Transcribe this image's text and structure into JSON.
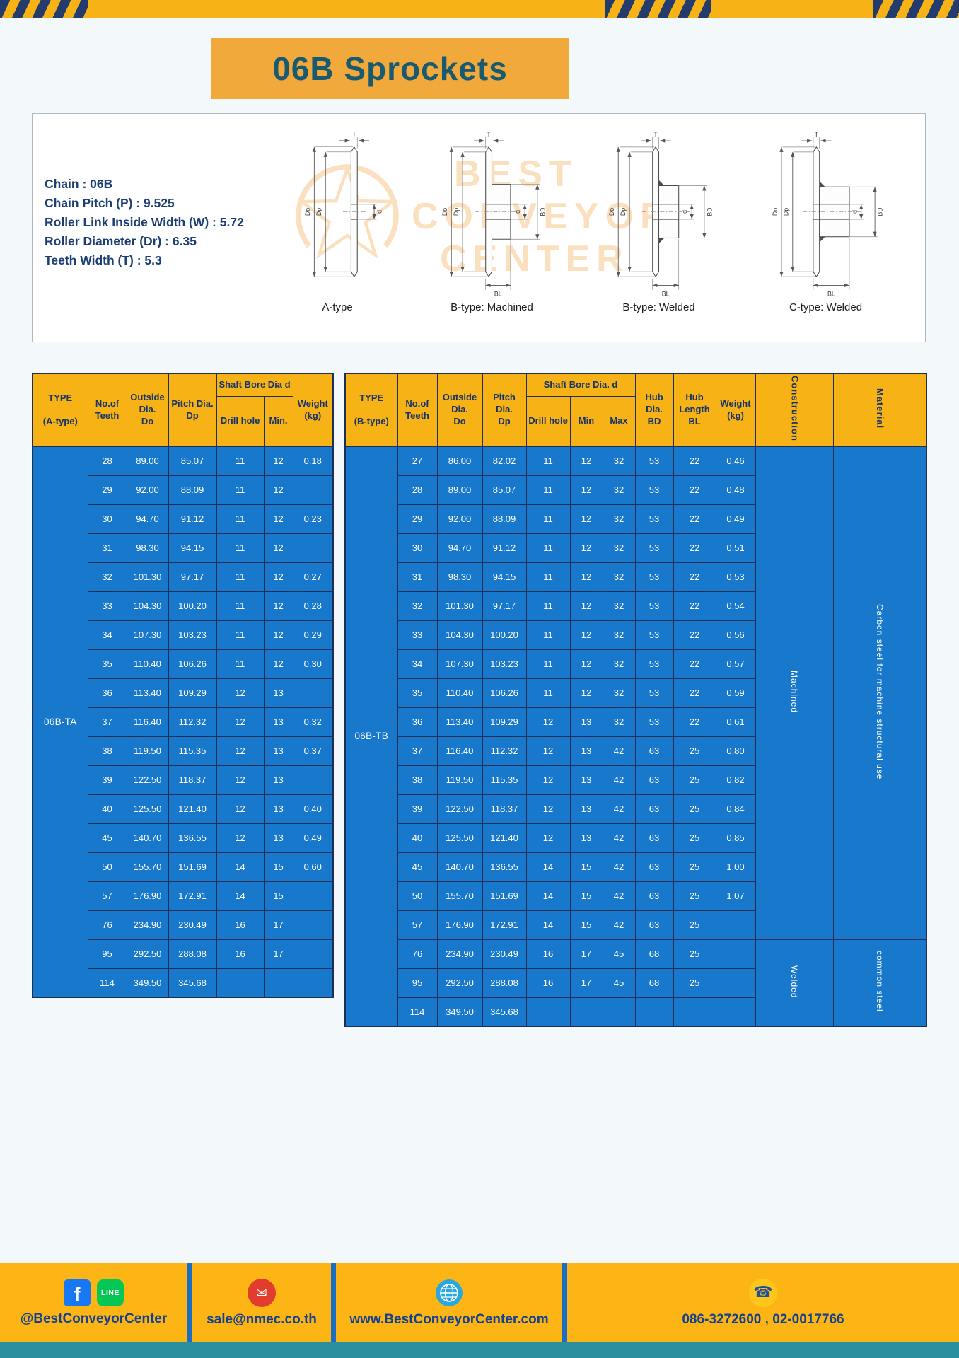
{
  "page_title": "06B Sprockets",
  "colors": {
    "header_yellow": "#f7b215",
    "cell_blue": "#1878cb",
    "border_navy": "#1d2f55",
    "banner_orange": "#f2a93b",
    "banner_text_teal": "#1a5a70",
    "spec_text_navy": "#1c3e75",
    "footer_yellow": "#fdb515",
    "footer_text_blue": "#14418f",
    "separator_blue": "#1a6fc4",
    "bottom_strip_teal": "#2b8fa0",
    "watermark_orange": "#ef9b2a"
  },
  "specs": {
    "lines": [
      "Chain : 06B",
      "Chain Pitch (P) : 9.525",
      "Roller Link Inside Width (W) : 5.72",
      "Roller Diameter (Dr) : 6.35",
      "Teeth Width (T) : 5.3"
    ]
  },
  "watermark": {
    "line1": "BEST",
    "line2": "CONVEYOR",
    "line3": "CENTER"
  },
  "diagrams": {
    "captions": [
      "A-type",
      "B-type: Machined",
      "B-type: Welded",
      "C-type: Welded"
    ],
    "dim_labels": {
      "t": "T",
      "do": "Do",
      "dp": "Dp",
      "d": "d",
      "bd": "BD",
      "bl": "BL"
    }
  },
  "table_a": {
    "header": {
      "type1": "TYPE",
      "type2": "(A-type)",
      "teeth": "No.of\nTeeth",
      "outside": "Outside\nDia.\nDo",
      "pitch": "Pitch Dia.\nDp",
      "bore_group": "Shaft Bore Dia d",
      "drill": "Drill hole",
      "min": "Min.",
      "weight": "Weight\n(kg)"
    },
    "type_label": "06B-TA",
    "rows": [
      [
        "28",
        "89.00",
        "85.07",
        "11",
        "12",
        "0.18"
      ],
      [
        "29",
        "92.00",
        "88.09",
        "11",
        "12",
        ""
      ],
      [
        "30",
        "94.70",
        "91.12",
        "11",
        "12",
        "0.23"
      ],
      [
        "31",
        "98.30",
        "94.15",
        "11",
        "12",
        ""
      ],
      [
        "32",
        "101.30",
        "97.17",
        "11",
        "12",
        "0.27"
      ],
      [
        "33",
        "104.30",
        "100.20",
        "11",
        "12",
        "0.28"
      ],
      [
        "34",
        "107.30",
        "103.23",
        "11",
        "12",
        "0.29"
      ],
      [
        "35",
        "110.40",
        "106.26",
        "11",
        "12",
        "0.30"
      ],
      [
        "36",
        "113.40",
        "109.29",
        "12",
        "13",
        ""
      ],
      [
        "37",
        "116.40",
        "112.32",
        "12",
        "13",
        "0.32"
      ],
      [
        "38",
        "119.50",
        "115.35",
        "12",
        "13",
        "0.37"
      ],
      [
        "39",
        "122.50",
        "118.37",
        "12",
        "13",
        ""
      ],
      [
        "40",
        "125.50",
        "121.40",
        "12",
        "13",
        "0.40"
      ],
      [
        "45",
        "140.70",
        "136.55",
        "12",
        "13",
        "0.49"
      ],
      [
        "50",
        "155.70",
        "151.69",
        "14",
        "15",
        "0.60"
      ],
      [
        "57",
        "176.90",
        "172.91",
        "14",
        "15",
        ""
      ],
      [
        "76",
        "234.90",
        "230.49",
        "16",
        "17",
        ""
      ],
      [
        "95",
        "292.50",
        "288.08",
        "16",
        "17",
        ""
      ],
      [
        "114",
        "349.50",
        "345.68",
        "",
        "",
        ""
      ]
    ]
  },
  "table_b": {
    "header": {
      "type1": "TYPE",
      "type2": "(B-type)",
      "teeth": "No.of\nTeeth",
      "outside": "Outside\nDia.\nDo",
      "pitch": "Pitch\nDia.\nDp",
      "bore_group": "Shaft Bore Dia. d",
      "drill": "Drill hole",
      "min": "Min",
      "max": "Max",
      "hub_dia": "Hub\nDia.\nBD",
      "hub_length": "Hub\nLength\nBL",
      "weight": "Weight\n(kg)",
      "construction": "Construction",
      "material": "Material"
    },
    "type_label": "06B-TB",
    "rows": [
      [
        "27",
        "86.00",
        "82.02",
        "11",
        "12",
        "32",
        "53",
        "22",
        "0.46"
      ],
      [
        "28",
        "89.00",
        "85.07",
        "11",
        "12",
        "32",
        "53",
        "22",
        "0.48"
      ],
      [
        "29",
        "92.00",
        "88.09",
        "11",
        "12",
        "32",
        "53",
        "22",
        "0.49"
      ],
      [
        "30",
        "94.70",
        "91.12",
        "11",
        "12",
        "32",
        "53",
        "22",
        "0.51"
      ],
      [
        "31",
        "98.30",
        "94.15",
        "11",
        "12",
        "32",
        "53",
        "22",
        "0.53"
      ],
      [
        "32",
        "101.30",
        "97.17",
        "11",
        "12",
        "32",
        "53",
        "22",
        "0.54"
      ],
      [
        "33",
        "104.30",
        "100.20",
        "11",
        "12",
        "32",
        "53",
        "22",
        "0.56"
      ],
      [
        "34",
        "107.30",
        "103.23",
        "11",
        "12",
        "32",
        "53",
        "22",
        "0.57"
      ],
      [
        "35",
        "110.40",
        "106.26",
        "11",
        "12",
        "32",
        "53",
        "22",
        "0.59"
      ],
      [
        "36",
        "113.40",
        "109.29",
        "12",
        "13",
        "32",
        "53",
        "22",
        "0.61"
      ],
      [
        "37",
        "116.40",
        "112.32",
        "12",
        "13",
        "42",
        "63",
        "25",
        "0.80"
      ],
      [
        "38",
        "119.50",
        "115.35",
        "12",
        "13",
        "42",
        "63",
        "25",
        "0.82"
      ],
      [
        "39",
        "122.50",
        "118.37",
        "12",
        "13",
        "42",
        "63",
        "25",
        "0.84"
      ],
      [
        "40",
        "125.50",
        "121.40",
        "12",
        "13",
        "42",
        "63",
        "25",
        "0.85"
      ],
      [
        "45",
        "140.70",
        "136.55",
        "14",
        "15",
        "42",
        "63",
        "25",
        "1.00"
      ],
      [
        "50",
        "155.70",
        "151.69",
        "14",
        "15",
        "42",
        "63",
        "25",
        "1.07"
      ],
      [
        "57",
        "176.90",
        "172.91",
        "14",
        "15",
        "42",
        "63",
        "25",
        ""
      ],
      [
        "76",
        "234.90",
        "230.49",
        "16",
        "17",
        "45",
        "68",
        "25",
        ""
      ],
      [
        "95",
        "292.50",
        "288.08",
        "16",
        "17",
        "45",
        "68",
        "25",
        ""
      ],
      [
        "114",
        "349.50",
        "345.68",
        "",
        "",
        "",
        "",
        "",
        ""
      ]
    ],
    "construction_spans": [
      {
        "label": "Machined",
        "rows": 17
      },
      {
        "label": "Welded",
        "rows": 3
      }
    ],
    "material_spans": [
      {
        "label": "Carbon steel for machine structural use",
        "rows": 17
      },
      {
        "label": "common steel",
        "rows": 3
      }
    ]
  },
  "footer": {
    "social_text": "@BestConveyorCenter",
    "email_text": "sale@nmec.co.th",
    "website_text": "www.BestConveyorCenter.com",
    "phone_text": "086-3272600 , 02-0017766",
    "facebook_glyph": "f",
    "line_glyph": "LINE",
    "mail_glyph": "✉",
    "phone_glyph": "☎"
  }
}
